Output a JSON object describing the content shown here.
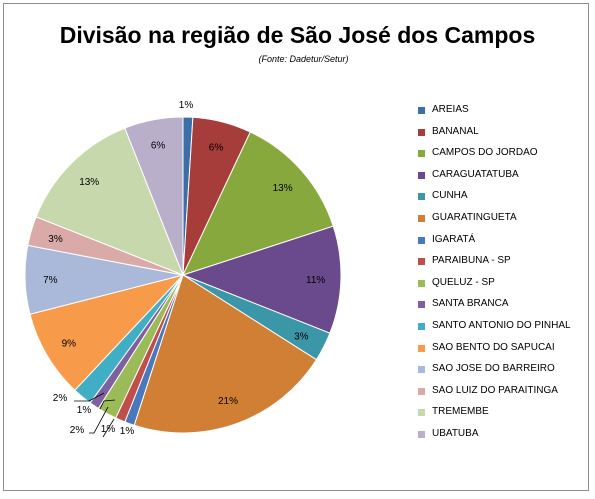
{
  "chart_data": {
    "type": "pie",
    "title": "Divisão na região de São José dos Campos",
    "subtitle": "(Fonte: Dadetur/Setur)",
    "legend_position": "right",
    "slices": [
      {
        "label": "AREIAS",
        "value": 1,
        "display": "1%",
        "color": "#3c6ea8"
      },
      {
        "label": "BANANAL",
        "value": 6,
        "display": "6%",
        "color": "#a63d3a"
      },
      {
        "label": "CAMPOS DO JORDAO",
        "value": 13,
        "display": "13%",
        "color": "#86a83c"
      },
      {
        "label": "CARAGUATATUBA",
        "value": 11,
        "display": "11%",
        "color": "#6a4a8c"
      },
      {
        "label": "CUNHA",
        "value": 3,
        "display": "3%",
        "color": "#3b97a8"
      },
      {
        "label": "GUARATINGUETA",
        "value": 21,
        "display": "21%",
        "color": "#d07f35"
      },
      {
        "label": "IGARATÁ",
        "value": 1,
        "display": "1%",
        "color": "#4a78bd"
      },
      {
        "label": "PARAIBUNA - SP",
        "value": 1,
        "display": "1%",
        "color": "#c04f4c"
      },
      {
        "label": "QUELUZ - SP",
        "value": 2,
        "display": "2%",
        "color": "#9bbb59"
      },
      {
        "label": "SANTA BRANCA",
        "value": 1,
        "display": "1%",
        "color": "#7d60a0"
      },
      {
        "label": "SANTO ANTONIO DO PINHAL",
        "value": 2,
        "display": "2%",
        "color": "#40aec4"
      },
      {
        "label": "SAO BENTO DO SAPUCAI",
        "value": 9,
        "display": "9%",
        "color": "#f79b4a"
      },
      {
        "label": "SAO JOSE DO BARREIRO",
        "value": 7,
        "display": "7%",
        "color": "#aab9da"
      },
      {
        "label": "SAO LUIZ DO PARAITINGA",
        "value": 3,
        "display": "3%",
        "color": "#daaaa9"
      },
      {
        "label": "TREMEMBE",
        "value": 13,
        "display": "13%",
        "color": "#c8d8ad"
      },
      {
        "label": "UBATUBA",
        "value": 6,
        "display": "6%",
        "color": "#b9afcb"
      }
    ]
  }
}
